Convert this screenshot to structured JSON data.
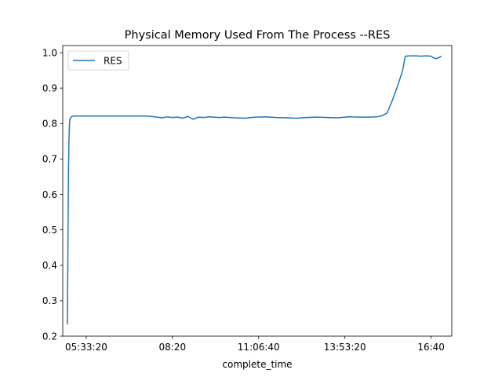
{
  "chart_data": {
    "type": "line",
    "title": "Physical Memory Used From The Process --RES",
    "xlabel": "complete_time",
    "ylabel": "",
    "x_unit": "time of day",
    "xlim": [
      "04:48:00",
      "17:20:00"
    ],
    "ylim": [
      0.2,
      1.02
    ],
    "x_ticks": [
      "05:33:20",
      "08:20",
      "11:06:40",
      "13:53:20",
      "16:40"
    ],
    "y_ticks": [
      0.2,
      0.3,
      0.4,
      0.5,
      0.6,
      0.7,
      0.8,
      0.9,
      1.0
    ],
    "y_tick_labels": [
      "0.2",
      "0.3",
      "0.4",
      "0.5",
      "0.6",
      "0.7",
      "0.8",
      "0.9",
      "1.0"
    ],
    "grid": false,
    "legend_position": "top-left",
    "colors": {
      "series": "#1f77b4"
    },
    "series": [
      {
        "name": "RES",
        "x": [
          "04:57:00",
          "04:58:00",
          "04:59:00",
          "05:00:00",
          "05:01:00",
          "05:02:00",
          "05:04:00",
          "05:06:00",
          "05:08:00",
          "05:12:00",
          "05:20:00",
          "05:40:00",
          "06:20:00",
          "07:00:00",
          "07:30:00",
          "07:40:00",
          "07:50:00",
          "08:00:00",
          "08:10:00",
          "08:20:00",
          "08:30:00",
          "08:40:00",
          "08:50:00",
          "09:00:00",
          "09:10:00",
          "09:20:00",
          "09:30:00",
          "09:40:00",
          "09:50:00",
          "10:00:00",
          "10:20:00",
          "10:40:00",
          "11:00:00",
          "11:20:00",
          "11:40:00",
          "12:00:00",
          "12:20:00",
          "12:40:00",
          "13:00:00",
          "13:20:00",
          "13:40:00",
          "14:00:00",
          "14:20:00",
          "14:40:00",
          "14:55:00",
          "15:05:00",
          "15:15:00",
          "15:25:00",
          "15:35:00",
          "15:45:00",
          "15:50:00",
          "16:00:00",
          "16:10:00",
          "16:20:00",
          "16:30:00",
          "16:40:00",
          "16:45:00",
          "16:50:00",
          "16:55:00",
          "17:00:00"
        ],
        "y": [
          0.233,
          0.45,
          0.66,
          0.75,
          0.8,
          0.813,
          0.818,
          0.82,
          0.821,
          0.821,
          0.821,
          0.821,
          0.821,
          0.821,
          0.821,
          0.82,
          0.818,
          0.816,
          0.819,
          0.817,
          0.818,
          0.815,
          0.82,
          0.812,
          0.818,
          0.817,
          0.819,
          0.818,
          0.817,
          0.818,
          0.816,
          0.815,
          0.818,
          0.819,
          0.817,
          0.816,
          0.815,
          0.817,
          0.818,
          0.817,
          0.816,
          0.819,
          0.818,
          0.818,
          0.819,
          0.822,
          0.83,
          0.865,
          0.905,
          0.95,
          0.99,
          0.991,
          0.991,
          0.99,
          0.991,
          0.99,
          0.985,
          0.983,
          0.986,
          0.99
        ]
      }
    ]
  }
}
